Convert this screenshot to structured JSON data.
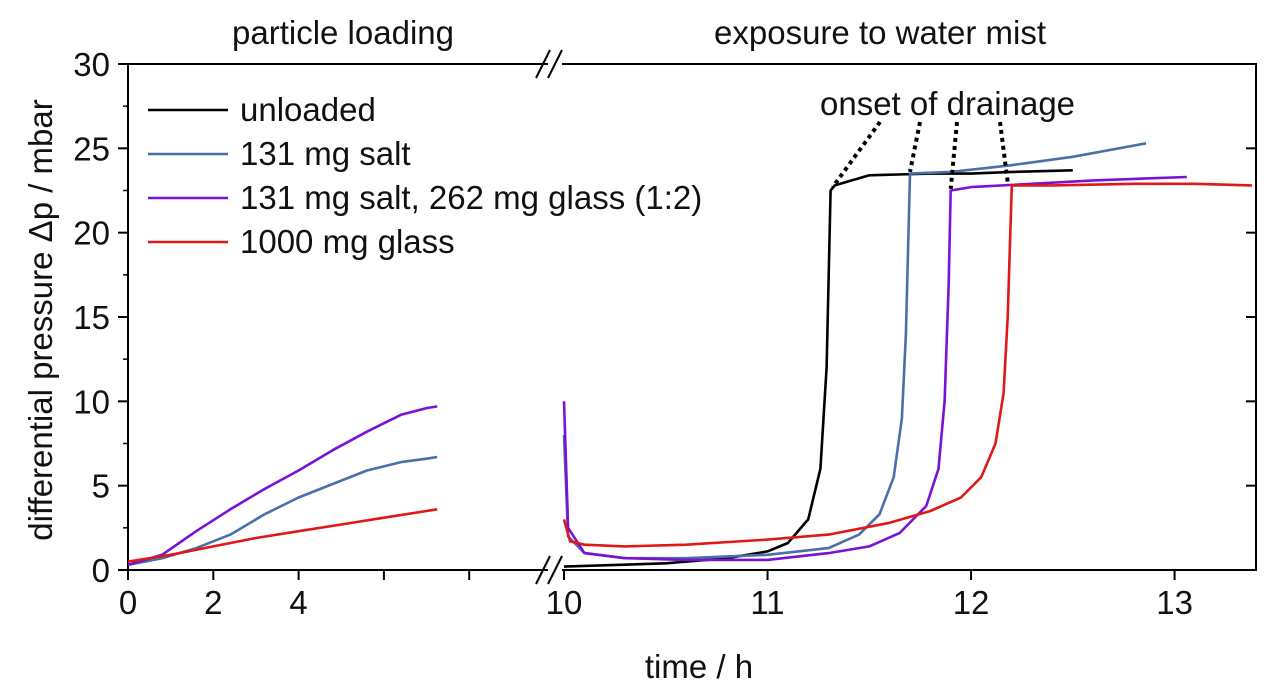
{
  "chart_data": {
    "type": "line",
    "xlabel": "time / h",
    "ylabel": "differential pressure Δp / mbar",
    "ylim": [
      0,
      30
    ],
    "grid": false,
    "segments": [
      {
        "title": "particle loading",
        "xlim": [
          0,
          9.8
        ],
        "ticks": [
          0,
          2,
          4,
          6,
          8
        ]
      },
      {
        "title": "exposure to water mist",
        "xlim": [
          10,
          13.4
        ],
        "ticks": [
          10,
          11,
          12,
          13
        ]
      }
    ],
    "x_tick_labels": [
      "0",
      "2",
      "4",
      "",
      "",
      "10",
      "11",
      "12",
      "13"
    ],
    "y_ticks": [
      0,
      5,
      10,
      15,
      20,
      25,
      30
    ],
    "y_tick_labels": [
      "0",
      "5",
      "10",
      "15",
      "20",
      "25",
      "30"
    ],
    "legend_position": "top-left",
    "annotation": {
      "text": "onset of drainage",
      "points": [
        [
          11.32,
          22.7
        ],
        [
          11.7,
          23.6
        ],
        [
          11.9,
          22.6
        ],
        [
          12.18,
          23.0
        ]
      ]
    },
    "series": [
      {
        "name": "unloaded",
        "color": "#000000",
        "loading": [],
        "mist": [
          [
            10.0,
            0.2
          ],
          [
            10.5,
            0.4
          ],
          [
            10.8,
            0.7
          ],
          [
            11.0,
            1.1
          ],
          [
            11.1,
            1.6
          ],
          [
            11.2,
            3.0
          ],
          [
            11.26,
            6.0
          ],
          [
            11.29,
            12.0
          ],
          [
            11.31,
            22.5
          ],
          [
            11.33,
            22.8
          ],
          [
            11.5,
            23.4
          ],
          [
            11.8,
            23.5
          ],
          [
            12.0,
            23.5
          ],
          [
            12.2,
            23.6
          ],
          [
            12.5,
            23.7
          ]
        ]
      },
      {
        "name": "131 mg salt",
        "color": "#4a70a8",
        "loading": [
          [
            0,
            0.3
          ],
          [
            0.8,
            0.7
          ],
          [
            1.6,
            1.3
          ],
          [
            2.4,
            2.1
          ],
          [
            3.2,
            3.3
          ],
          [
            4.0,
            4.3
          ],
          [
            4.8,
            5.1
          ],
          [
            5.6,
            5.9
          ],
          [
            6.4,
            6.4
          ],
          [
            7.0,
            6.6
          ],
          [
            7.25,
            6.7
          ]
        ],
        "mist": [
          [
            10.0,
            8.0
          ],
          [
            10.02,
            2.0
          ],
          [
            10.1,
            1.0
          ],
          [
            10.3,
            0.7
          ],
          [
            10.6,
            0.7
          ],
          [
            11.0,
            0.9
          ],
          [
            11.3,
            1.3
          ],
          [
            11.45,
            2.1
          ],
          [
            11.55,
            3.3
          ],
          [
            11.62,
            5.5
          ],
          [
            11.66,
            9.0
          ],
          [
            11.68,
            14.0
          ],
          [
            11.7,
            23.5
          ],
          [
            11.9,
            23.6
          ],
          [
            12.2,
            24.0
          ],
          [
            12.5,
            24.5
          ],
          [
            12.86,
            25.3
          ]
        ]
      },
      {
        "name": "131 mg salt, 262 mg glass (1:2)",
        "color": "#7a12d6",
        "loading": [
          [
            0,
            0.3
          ],
          [
            0.8,
            0.9
          ],
          [
            1.6,
            2.3
          ],
          [
            2.4,
            3.6
          ],
          [
            3.2,
            4.8
          ],
          [
            4.0,
            5.9
          ],
          [
            4.8,
            7.1
          ],
          [
            5.6,
            8.2
          ],
          [
            6.4,
            9.2
          ],
          [
            7.0,
            9.6
          ],
          [
            7.25,
            9.7
          ]
        ],
        "mist": [
          [
            10.0,
            10.0
          ],
          [
            10.02,
            2.5
          ],
          [
            10.1,
            1.0
          ],
          [
            10.3,
            0.7
          ],
          [
            10.6,
            0.6
          ],
          [
            11.0,
            0.6
          ],
          [
            11.3,
            1.0
          ],
          [
            11.5,
            1.4
          ],
          [
            11.65,
            2.2
          ],
          [
            11.78,
            3.8
          ],
          [
            11.84,
            6.0
          ],
          [
            11.87,
            10.0
          ],
          [
            11.89,
            17.0
          ],
          [
            11.9,
            22.5
          ],
          [
            12.0,
            22.7
          ],
          [
            12.3,
            22.9
          ],
          [
            12.6,
            23.1
          ],
          [
            13.06,
            23.3
          ]
        ]
      },
      {
        "name": "1000 mg glass",
        "color": "#e01818",
        "loading": [
          [
            0,
            0.5
          ],
          [
            1.0,
            0.9
          ],
          [
            2.0,
            1.4
          ],
          [
            3.0,
            1.9
          ],
          [
            4.0,
            2.3
          ],
          [
            5.0,
            2.7
          ],
          [
            6.0,
            3.1
          ],
          [
            7.0,
            3.5
          ],
          [
            7.25,
            3.6
          ]
        ],
        "mist": [
          [
            10.0,
            3.0
          ],
          [
            10.03,
            1.7
          ],
          [
            10.1,
            1.5
          ],
          [
            10.3,
            1.4
          ],
          [
            10.6,
            1.5
          ],
          [
            11.0,
            1.8
          ],
          [
            11.3,
            2.1
          ],
          [
            11.6,
            2.8
          ],
          [
            11.8,
            3.5
          ],
          [
            11.95,
            4.3
          ],
          [
            12.05,
            5.5
          ],
          [
            12.12,
            7.5
          ],
          [
            12.16,
            10.5
          ],
          [
            12.18,
            15.0
          ],
          [
            12.2,
            22.8
          ],
          [
            12.4,
            22.8
          ],
          [
            12.8,
            22.9
          ],
          [
            13.1,
            22.9
          ],
          [
            13.38,
            22.8
          ]
        ]
      }
    ]
  }
}
